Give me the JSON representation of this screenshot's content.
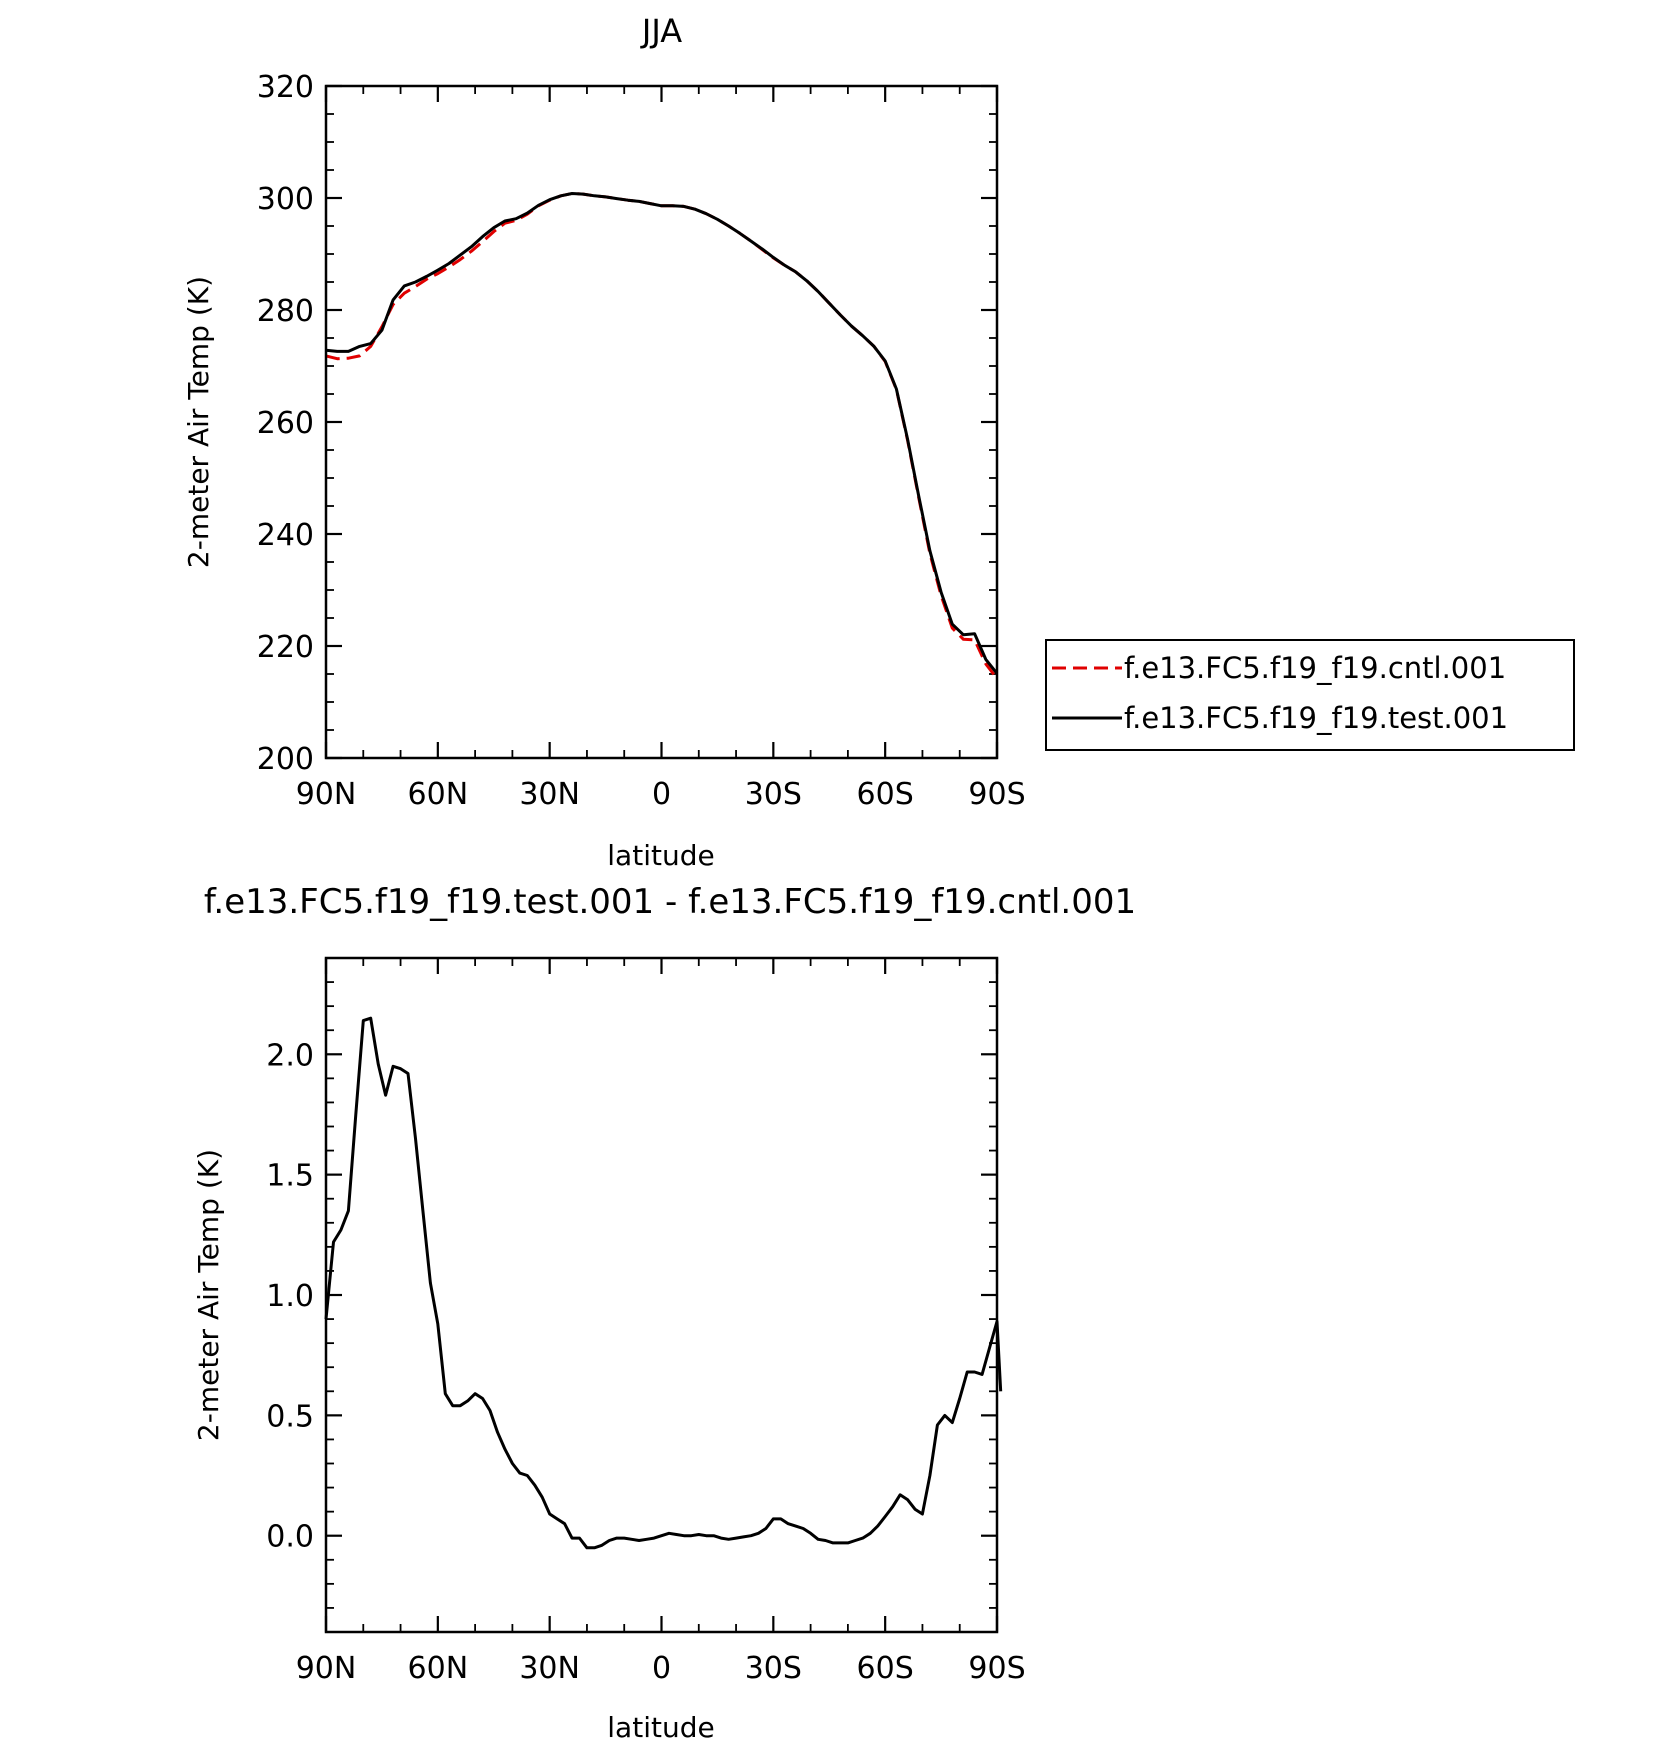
{
  "chart_data": [
    {
      "type": "line",
      "title": "JJA",
      "xlabel": "latitude",
      "ylabel": "2-meter Air Temp (K)",
      "xlim": [
        90,
        -90
      ],
      "ylim": [
        200,
        320
      ],
      "x_ticks": [
        90,
        60,
        30,
        0,
        -30,
        -60,
        -90
      ],
      "x_tick_labels": [
        "90N",
        "60N",
        "30N",
        "0",
        "30S",
        "60S",
        "90S"
      ],
      "y_ticks": [
        200,
        220,
        240,
        260,
        280,
        300,
        320
      ],
      "y_tick_labels": [
        "200",
        "220",
        "240",
        "260",
        "280",
        "300",
        "320"
      ],
      "legend_position": "right",
      "series": [
        {
          "name": "f.e13.FC5.f19_f19.cntl.001",
          "color": "#e00000",
          "dash": "dashed",
          "points": [
            [
              90,
              271.8
            ],
            [
              87,
              271.3
            ],
            [
              84,
              271.4
            ],
            [
              81,
              271.8
            ],
            [
              78,
              273.5
            ],
            [
              75,
              277
            ],
            [
              72,
              281
            ],
            [
              69,
              283
            ],
            [
              66,
              284.2
            ],
            [
              63,
              285.5
            ],
            [
              60,
              286.5
            ],
            [
              57,
              287.7
            ],
            [
              54,
              289
            ],
            [
              51,
              290.5
            ],
            [
              48,
              292.2
            ],
            [
              45,
              294
            ],
            [
              42,
              295.5
            ],
            [
              39,
              296
            ],
            [
              36,
              297.1
            ],
            [
              33,
              298.6
            ],
            [
              30,
              299.6
            ],
            [
              27,
              300.4
            ],
            [
              24,
              300.8
            ],
            [
              21,
              300.7
            ],
            [
              18,
              300.4
            ],
            [
              15,
              300.2
            ],
            [
              12,
              299.9
            ],
            [
              9,
              299.6
            ],
            [
              6,
              299.4
            ],
            [
              3,
              299
            ],
            [
              0,
              298.6
            ],
            [
              -3,
              298.6
            ],
            [
              -6,
              298.5
            ],
            [
              -9,
              298
            ],
            [
              -12,
              297.2
            ],
            [
              -15,
              296.2
            ],
            [
              -18,
              295
            ],
            [
              -21,
              293.7
            ],
            [
              -24,
              292.3
            ],
            [
              -27,
              290.8
            ],
            [
              -30,
              289.3
            ],
            [
              -33,
              288
            ],
            [
              -36,
              286.8
            ],
            [
              -39,
              285.2
            ],
            [
              -42,
              283.3
            ],
            [
              -45,
              281.2
            ],
            [
              -48,
              279.1
            ],
            [
              -51,
              277.1
            ],
            [
              -54,
              275.4
            ],
            [
              -57,
              273.5
            ],
            [
              -60,
              270.8
            ],
            [
              -63,
              265.8
            ],
            [
              -66,
              256.8
            ],
            [
              -69,
              246.5
            ],
            [
              -72,
              236.5
            ],
            [
              -75,
              229
            ],
            [
              -78,
              223.2
            ],
            [
              -81,
              221.2
            ],
            [
              -84,
              221.1
            ],
            [
              -87,
              216.8
            ],
            [
              -90,
              214.2
            ]
          ]
        },
        {
          "name": "f.e13.FC5.f19_f19.test.001",
          "color": "#000000",
          "dash": "solid",
          "points": [
            [
              90,
              272.8
            ],
            [
              87,
              272.6
            ],
            [
              84,
              272.6
            ],
            [
              81,
              273.5
            ],
            [
              78,
              274
            ],
            [
              75,
              276.4
            ],
            [
              72,
              281.8
            ],
            [
              69,
              284.3
            ],
            [
              66,
              285
            ],
            [
              63,
              286
            ],
            [
              60,
              287.1
            ],
            [
              57,
              288.3
            ],
            [
              54,
              289.8
            ],
            [
              51,
              291.3
            ],
            [
              48,
              293.1
            ],
            [
              45,
              294.7
            ],
            [
              42,
              295.9
            ],
            [
              39,
              296.3
            ],
            [
              36,
              297.3
            ],
            [
              33,
              298.7
            ],
            [
              30,
              299.7
            ],
            [
              27,
              300.4
            ],
            [
              24,
              300.8
            ],
            [
              21,
              300.7
            ],
            [
              18,
              300.4
            ],
            [
              15,
              300.2
            ],
            [
              12,
              299.9
            ],
            [
              9,
              299.6
            ],
            [
              6,
              299.4
            ],
            [
              3,
              299
            ],
            [
              0,
              298.6
            ],
            [
              -3,
              298.6
            ],
            [
              -6,
              298.5
            ],
            [
              -9,
              298
            ],
            [
              -12,
              297.2
            ],
            [
              -15,
              296.2
            ],
            [
              -18,
              295
            ],
            [
              -21,
              293.7
            ],
            [
              -24,
              292.3
            ],
            [
              -27,
              290.9
            ],
            [
              -30,
              289.4
            ],
            [
              -33,
              288
            ],
            [
              -36,
              286.8
            ],
            [
              -39,
              285.2
            ],
            [
              -42,
              283.3
            ],
            [
              -45,
              281.2
            ],
            [
              -48,
              279.1
            ],
            [
              -51,
              277.1
            ],
            [
              -54,
              275.4
            ],
            [
              -57,
              273.5
            ],
            [
              -60,
              270.9
            ],
            [
              -63,
              265.9
            ],
            [
              -66,
              257
            ],
            [
              -69,
              246.8
            ],
            [
              -72,
              237
            ],
            [
              -75,
              229.6
            ],
            [
              -78,
              223.9
            ],
            [
              -81,
              222
            ],
            [
              -84,
              222.2
            ],
            [
              -87,
              217.6
            ],
            [
              -90,
              215.1
            ]
          ]
        }
      ]
    },
    {
      "type": "line",
      "title": "f.e13.FC5.f19_f19.test.001 - f.e13.FC5.f19_f19.cntl.001",
      "xlabel": "latitude",
      "ylabel": "2-meter Air Temp (K)",
      "xlim": [
        90,
        -90
      ],
      "ylim": [
        -0.4,
        2.4
      ],
      "x_ticks": [
        90,
        60,
        30,
        0,
        -30,
        -60,
        -90
      ],
      "x_tick_labels": [
        "90N",
        "60N",
        "30N",
        "0",
        "30S",
        "60S",
        "90S"
      ],
      "y_ticks": [
        0,
        0.5,
        1,
        1.5,
        2
      ],
      "y_tick_labels": [
        "0.0",
        "0.5",
        "1.0",
        "1.5",
        "2.0"
      ],
      "series": [
        {
          "color": "#000000",
          "dash": "solid",
          "points": [
            [
              90,
              0.9
            ],
            [
              88,
              1.22
            ],
            [
              86,
              1.27
            ],
            [
              84,
              1.35
            ],
            [
              82,
              1.75
            ],
            [
              80,
              2.14
            ],
            [
              78,
              2.15
            ],
            [
              76,
              1.96
            ],
            [
              74,
              1.83
            ],
            [
              72,
              1.95
            ],
            [
              70,
              1.94
            ],
            [
              68,
              1.92
            ],
            [
              66,
              1.65
            ],
            [
              64,
              1.35
            ],
            [
              62,
              1.05
            ],
            [
              60,
              0.88
            ],
            [
              58,
              0.59
            ],
            [
              56,
              0.54
            ],
            [
              54,
              0.54
            ],
            [
              52,
              0.56
            ],
            [
              50,
              0.59
            ],
            [
              48,
              0.57
            ],
            [
              46,
              0.52
            ],
            [
              44,
              0.43
            ],
            [
              42,
              0.36
            ],
            [
              40,
              0.3
            ],
            [
              38,
              0.26
            ],
            [
              36,
              0.25
            ],
            [
              34,
              0.21
            ],
            [
              32,
              0.16
            ],
            [
              30,
              0.09
            ],
            [
              28,
              0.07
            ],
            [
              26,
              0.05
            ],
            [
              24,
              -0.01
            ],
            [
              22,
              -0.01
            ],
            [
              20,
              -0.05
            ],
            [
              18,
              -0.05
            ],
            [
              16,
              -0.04
            ],
            [
              14,
              -0.02
            ],
            [
              12,
              -0.01
            ],
            [
              10,
              -0.01
            ],
            [
              8,
              -0.015
            ],
            [
              6,
              -0.02
            ],
            [
              4,
              -0.015
            ],
            [
              2,
              -0.01
            ],
            [
              0,
              0
            ],
            [
              -2,
              0.01
            ],
            [
              -4,
              0.005
            ],
            [
              -6,
              0
            ],
            [
              -8,
              0
            ],
            [
              -10,
              0.005
            ],
            [
              -12,
              0
            ],
            [
              -14,
              0
            ],
            [
              -16,
              -0.01
            ],
            [
              -18,
              -0.015
            ],
            [
              -20,
              -0.01
            ],
            [
              -22,
              -0.005
            ],
            [
              -24,
              0
            ],
            [
              -26,
              0.01
            ],
            [
              -28,
              0.03
            ],
            [
              -30,
              0.07
            ],
            [
              -32,
              0.07
            ],
            [
              -34,
              0.05
            ],
            [
              -36,
              0.04
            ],
            [
              -38,
              0.03
            ],
            [
              -40,
              0.01
            ],
            [
              -42,
              -0.015
            ],
            [
              -44,
              -0.02
            ],
            [
              -46,
              -0.03
            ],
            [
              -48,
              -0.03
            ],
            [
              -50,
              -0.03
            ],
            [
              -52,
              -0.02
            ],
            [
              -54,
              -0.01
            ],
            [
              -56,
              0.01
            ],
            [
              -58,
              0.04
            ],
            [
              -60,
              0.08
            ],
            [
              -62,
              0.12
            ],
            [
              -64,
              0.17
            ],
            [
              -66,
              0.15
            ],
            [
              -68,
              0.11
            ],
            [
              -70,
              0.09
            ],
            [
              -72,
              0.25
            ],
            [
              -74,
              0.46
            ],
            [
              -76,
              0.5
            ],
            [
              -78,
              0.47
            ],
            [
              -80,
              0.57
            ],
            [
              -82,
              0.68
            ],
            [
              -84,
              0.68
            ],
            [
              -86,
              0.67
            ],
            [
              -88,
              0.78
            ],
            [
              -90,
              0.89
            ],
            [
              -91,
              0.6
            ]
          ]
        }
      ]
    }
  ]
}
